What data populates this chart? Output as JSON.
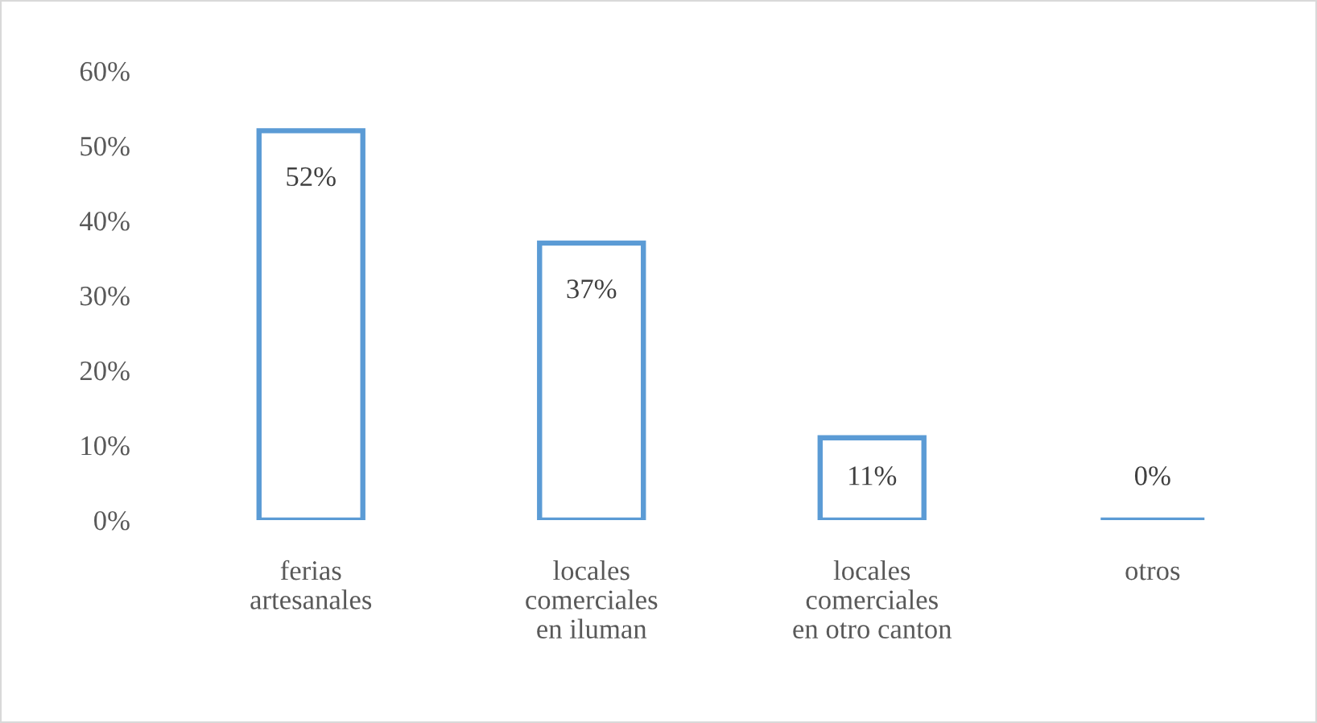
{
  "chart_data": {
    "type": "bar",
    "categories": [
      "ferias\nartesanales",
      "locales\ncomerciales\nen iluman",
      "locales\ncomerciales\nen otro canton",
      "otros"
    ],
    "values": [
      52,
      37,
      11,
      0
    ],
    "value_labels": [
      "52%",
      "37%",
      "11%",
      "0%"
    ],
    "color": "#5b9bd5",
    "ylim": [
      0,
      60
    ],
    "yticks": [
      {
        "value": 0,
        "label": "0%"
      },
      {
        "value": 10,
        "label": "10%"
      },
      {
        "value": 20,
        "label": "20%"
      },
      {
        "value": 30,
        "label": "30%"
      },
      {
        "value": 40,
        "label": "40%"
      },
      {
        "value": 50,
        "label": "50%"
      },
      {
        "value": 60,
        "label": "60%"
      }
    ],
    "grid": false,
    "legend": false
  }
}
